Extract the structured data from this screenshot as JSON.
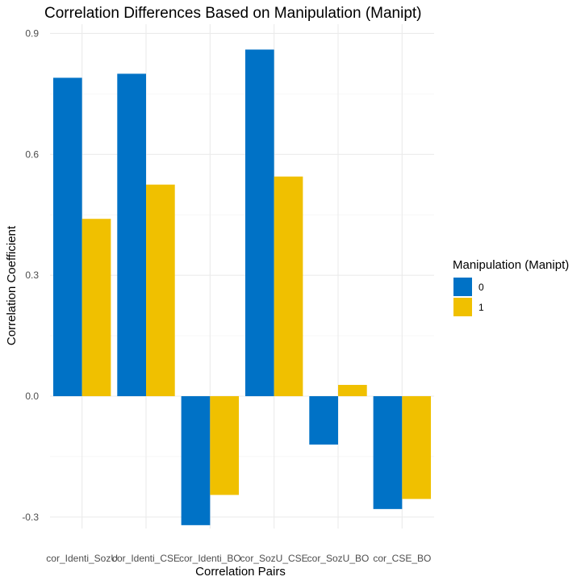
{
  "chart_data": {
    "type": "bar",
    "title": "Correlation Differences Based on Manipulation (Manipt)",
    "xlabel": "Correlation Pairs",
    "ylabel": "Correlation Coefficient",
    "categories": [
      "cor_Identi_SozU",
      "cor_Identi_CSE",
      "cor_Identi_BO",
      "cor_SozU_CSE",
      "cor_SozU_BO",
      "cor_CSE_BO"
    ],
    "series": [
      {
        "name": "0",
        "color": "#0072c6",
        "values": [
          0.79,
          0.8,
          -0.32,
          0.86,
          -0.12,
          -0.28
        ]
      },
      {
        "name": "1",
        "color": "#f0c000",
        "values": [
          0.44,
          0.525,
          -0.245,
          0.545,
          0.028,
          -0.255
        ]
      }
    ],
    "ylim": [
      -0.34,
      0.9
    ],
    "yticks": [
      -0.3,
      0.0,
      0.3,
      0.6,
      0.9
    ],
    "ytick_labels": [
      "-0.3",
      "0.0",
      "0.3",
      "0.6",
      "0.9"
    ],
    "grid": true,
    "legend": {
      "title": "Manipulation (Manipt)",
      "position": "right"
    }
  }
}
